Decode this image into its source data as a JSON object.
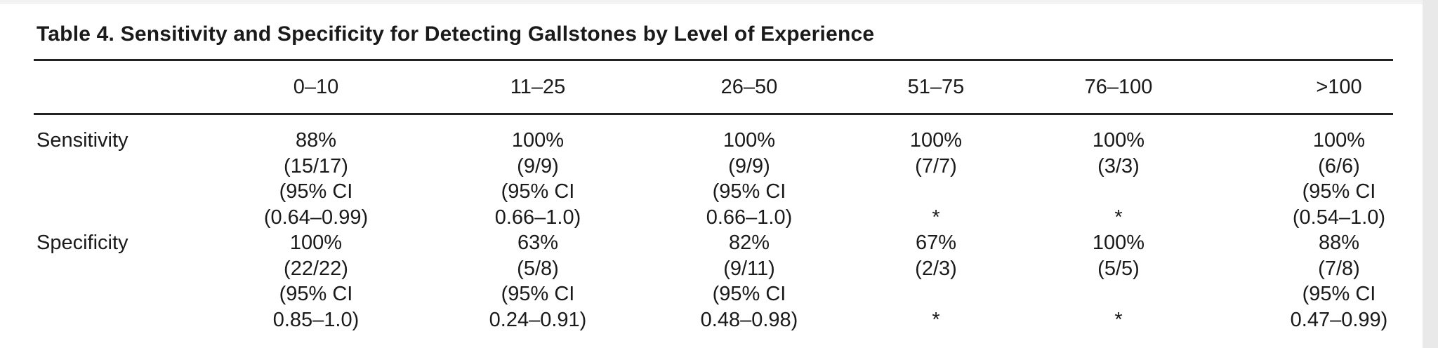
{
  "table": {
    "title": "Table 4.  Sensitivity and Specificity for Detecting Gallstones by Level of Experience",
    "columns": [
      "0–10",
      "11–25",
      "26–50",
      "51–75",
      "76–100",
      ">100"
    ],
    "rows": [
      {
        "label": "Sensitivity",
        "cells": [
          [
            "88%",
            "(15/17)",
            "(95% CI",
            "(0.64–0.99)"
          ],
          [
            "100%",
            "(9/9)",
            "(95% CI",
            "0.66–1.0)"
          ],
          [
            "100%",
            "(9/9)",
            "(95% CI",
            "0.66–1.0)"
          ],
          [
            "100%",
            "(7/7)",
            "",
            "*"
          ],
          [
            "100%",
            "(3/3)",
            "",
            "*"
          ],
          [
            "100%",
            "(6/6)",
            "(95% CI",
            "(0.54–1.0)"
          ]
        ]
      },
      {
        "label": "Specificity",
        "cells": [
          [
            "100%",
            "(22/22)",
            "(95% CI",
            "0.85–1.0)"
          ],
          [
            "63%",
            "(5/8)",
            "(95% CI",
            "0.24–0.91)"
          ],
          [
            "82%",
            "(9/11)",
            "(95% CI",
            "0.48–0.98)"
          ],
          [
            "67%",
            "(2/3)",
            "",
            "*"
          ],
          [
            "100%",
            "(5/5)",
            "",
            "*"
          ],
          [
            "88%",
            "(7/8)",
            "(95% CI",
            "0.47–0.99)"
          ]
        ]
      }
    ]
  }
}
